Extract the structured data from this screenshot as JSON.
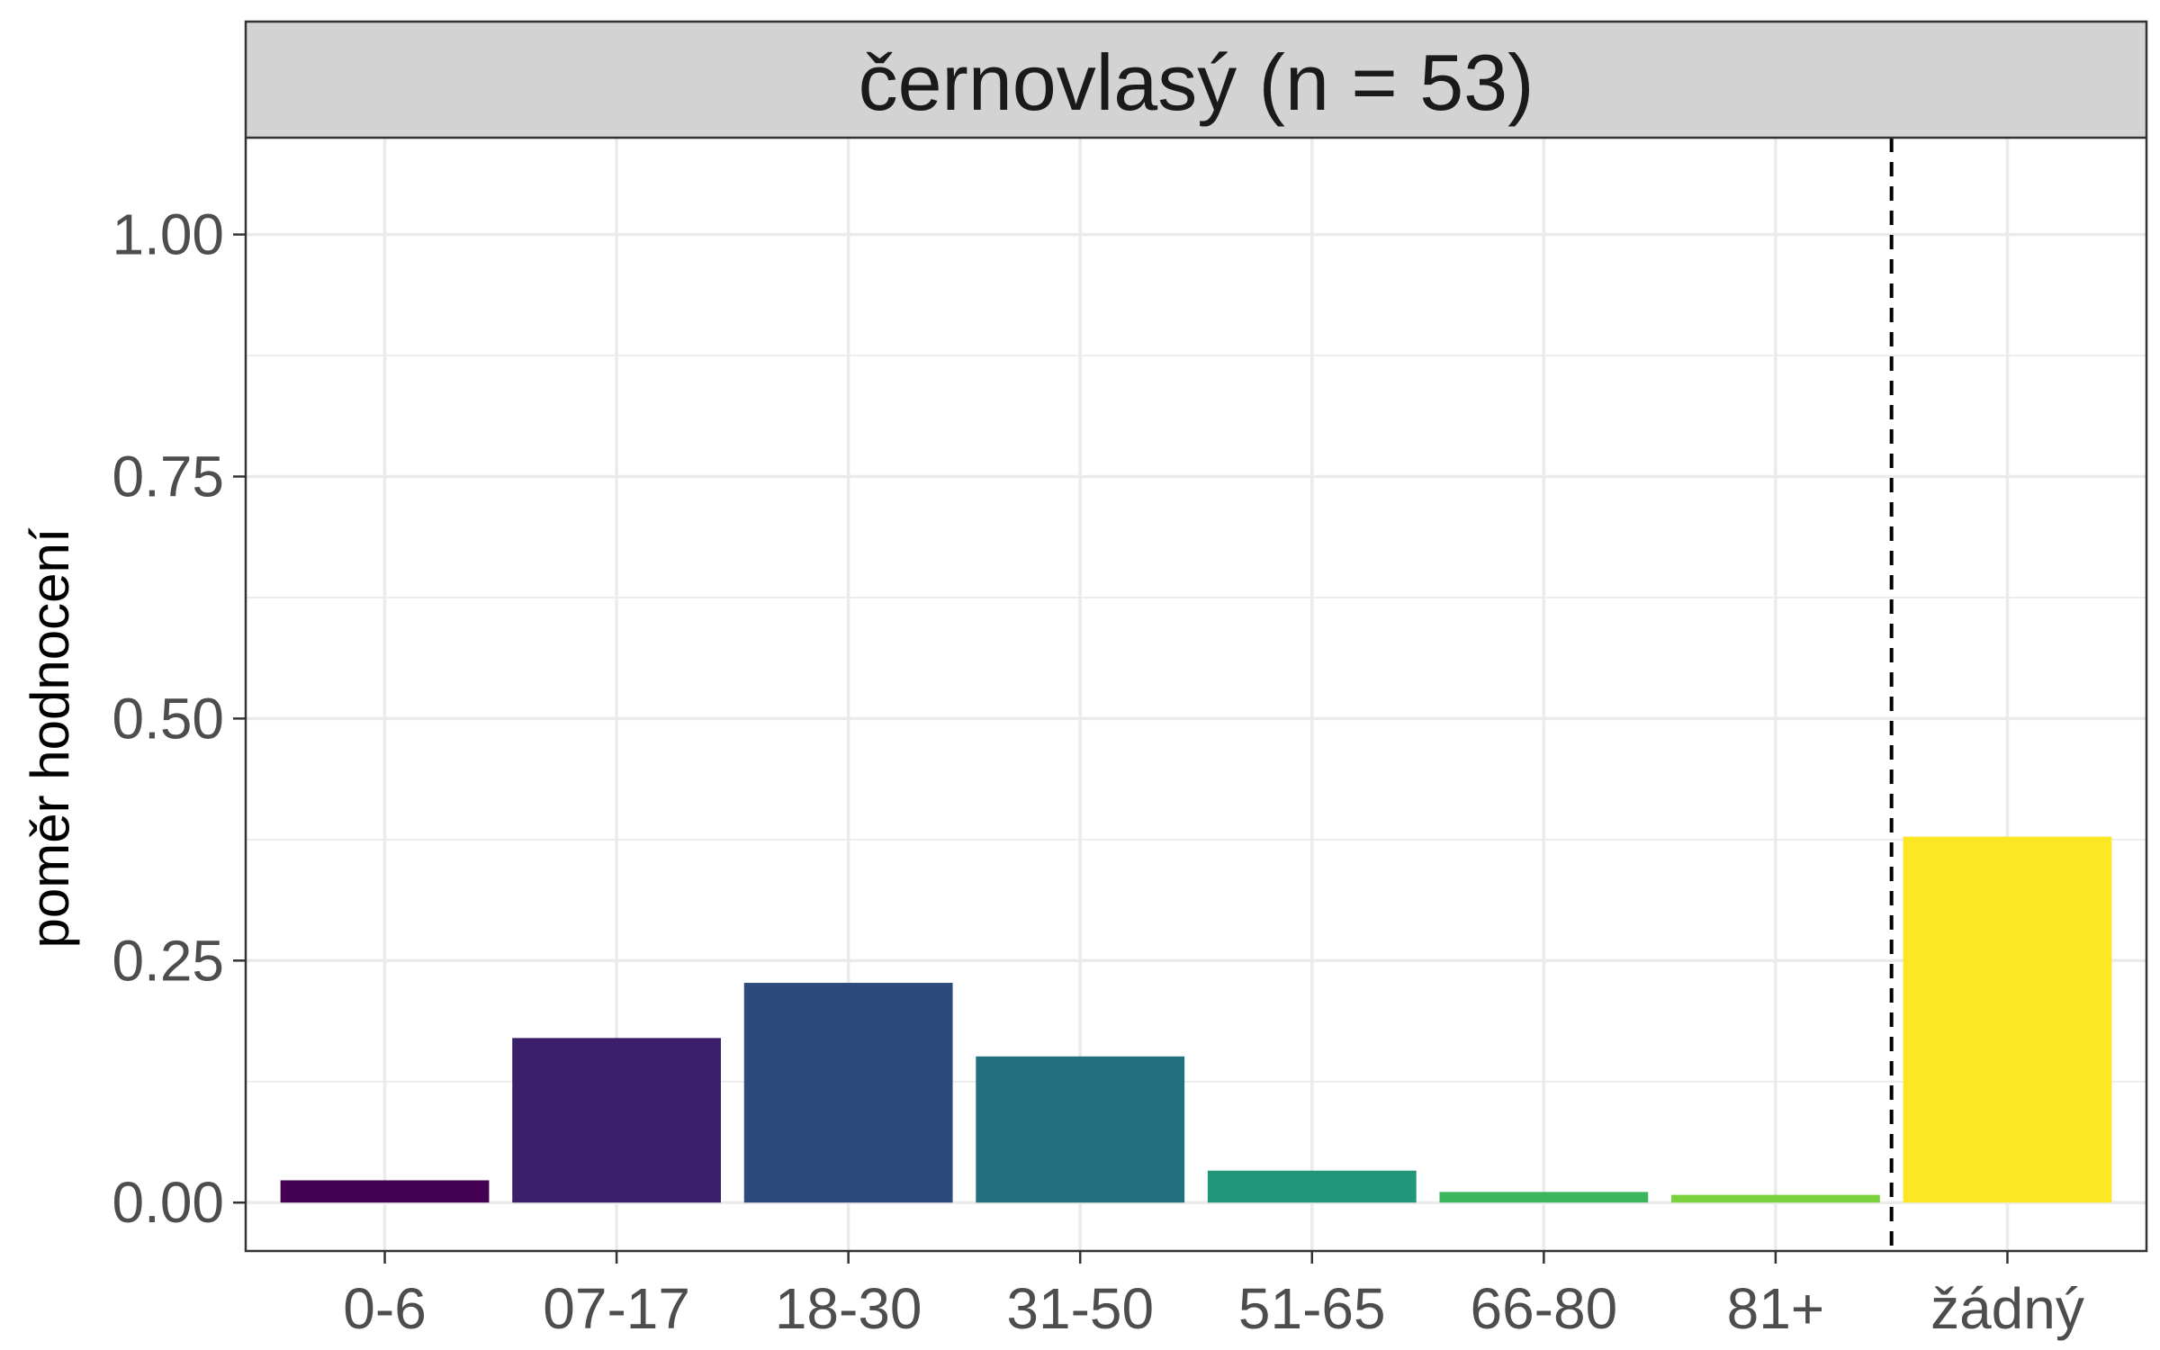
{
  "chart_data": {
    "type": "bar",
    "title": "",
    "facet_label": "černovlasý (n = 53)",
    "xlabel": "",
    "ylabel": "poměr hodnocení",
    "categories": [
      "0-6",
      "07-17",
      "18-30",
      "31-50",
      "51-65",
      "66-80",
      "81+",
      "žádný"
    ],
    "values": [
      0.023,
      0.17,
      0.227,
      0.151,
      0.033,
      0.011,
      0.008,
      0.378
    ],
    "bar_colors": [
      "#440154",
      "#3B1F6B",
      "#2C4A7B",
      "#226F7D",
      "#21967A",
      "#3CB65A",
      "#7BD23C",
      "#FDE725"
    ],
    "ylim": [
      -0.05,
      1.1
    ],
    "yticks": [
      0.0,
      0.25,
      0.5,
      0.75,
      1.0
    ],
    "ytick_labels": [
      "0.00",
      "0.25",
      "0.50",
      "0.75",
      "1.00"
    ],
    "grid": true,
    "legend": "none",
    "reference_line": {
      "style": "dashed",
      "between_categories": [
        "81+",
        "žádný"
      ]
    },
    "panel_strip_color": "#D3D3D3",
    "grid_color": "#EBEBEB"
  }
}
